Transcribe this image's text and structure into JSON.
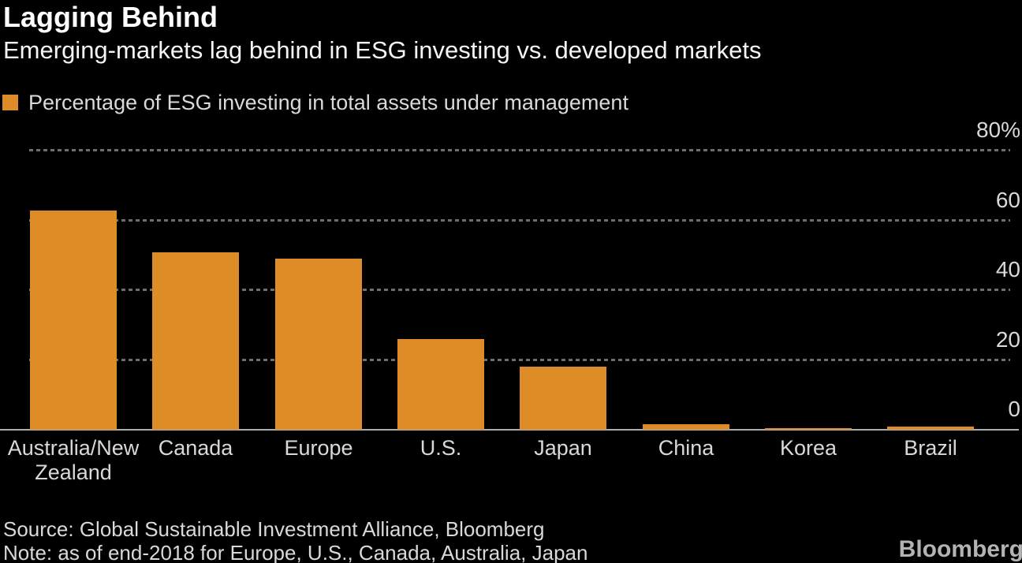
{
  "header": {
    "title": "Lagging Behind",
    "subtitle": "Emerging-markets lag behind in ESG investing vs. developed markets"
  },
  "legend": {
    "label": "Percentage of ESG investing in total assets under management",
    "swatch_color": "#DD8C28"
  },
  "chart_data": {
    "type": "bar",
    "categories": [
      "Australia/New Zealand",
      "Canada",
      "Europe",
      "U.S.",
      "Japan",
      "China",
      "Korea",
      "Brazil"
    ],
    "values": [
      63,
      51,
      49,
      26,
      18,
      1.5,
      0.4,
      0.8
    ],
    "title": "Lagging Behind",
    "xlabel": "",
    "ylabel": "",
    "ylim": [
      0,
      80
    ],
    "yticks": [
      0,
      20,
      40,
      60,
      80
    ],
    "ytick_labels": [
      "0",
      "20",
      "40",
      "60",
      "80%"
    ],
    "axis_side": "right",
    "grid": "horizontal-dotted",
    "bar_color": "#DD8C28",
    "legend_position": "top-left"
  },
  "footer": {
    "source": "Source: Global Sustainable Investment Alliance, Bloomberg",
    "note": "Note: as of end-2018 for Europe, U.S., Canada, Australia, Japan",
    "brand": "Bloomberg"
  },
  "colors": {
    "background": "#000000",
    "bar": "#DD8C28",
    "title_text": "#FFFFFF",
    "secondary_text": "#D9D9D9",
    "gridline": "#6E6E6E",
    "baseline": "#ABADAE",
    "brand_text": "#B3B3B3"
  }
}
